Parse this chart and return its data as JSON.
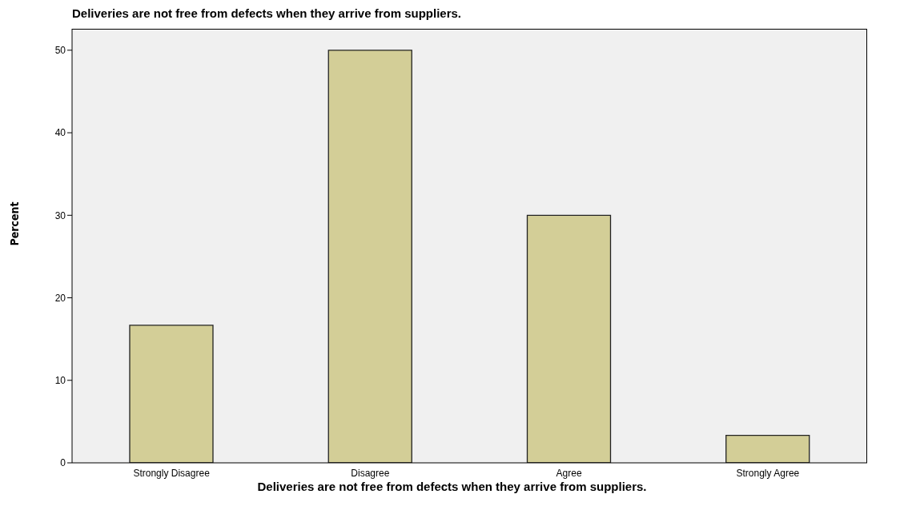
{
  "chart_data": {
    "type": "bar",
    "title": "Deliveries are not free from defects when they arrive from suppliers.",
    "xlabel": "Deliveries are not free from defects when they arrive from suppliers.",
    "ylabel": "Percent",
    "categories": [
      "Strongly Disagree",
      "Disagree",
      "Agree",
      "Strongly Agree"
    ],
    "values": [
      16.67,
      50,
      30,
      3.33
    ],
    "color": "#d3ce97",
    "ylim": [
      0,
      52.6
    ],
    "yticks": [
      0,
      10,
      20,
      30,
      40,
      50
    ]
  }
}
